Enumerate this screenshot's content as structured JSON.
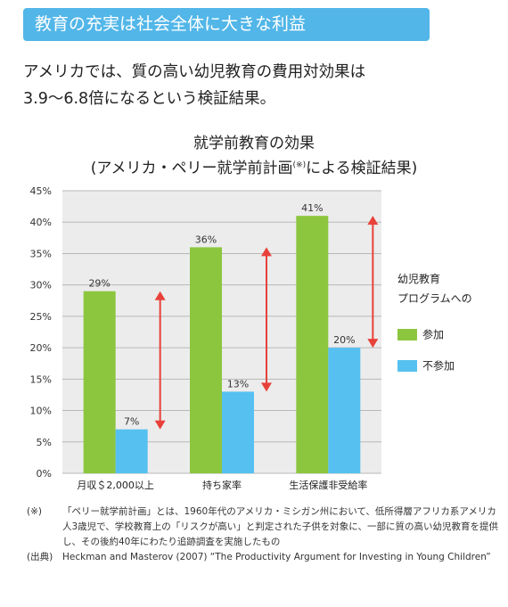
{
  "banner": {
    "title": "教育の充実は社会全体に大きな利益"
  },
  "headline": {
    "line1": "アメリカでは、質の高い幼児教育の費用対効果は",
    "line2": "3.9〜6.8倍になるという検証結果。"
  },
  "chart_titles": {
    "title": "就学前教育の効果",
    "subtitle_pre": "(アメリカ・ペリー就学前計画",
    "subtitle_sup": "(※)",
    "subtitle_post": "による検証結果)"
  },
  "legend": {
    "title_line1": "幼児教育",
    "title_line2": "プログラムへの"
  },
  "colors": {
    "participate": "#8cc63f",
    "non_participate": "#56c1f0",
    "arrow": "#e8413a",
    "grid": "#b8b8b8",
    "plot_bg": "#ececec"
  },
  "chart_data": {
    "type": "bar",
    "categories": [
      "月収＄2,000以上",
      "持ち家率",
      "生活保護非受給率"
    ],
    "series": [
      {
        "name": "参加",
        "values": [
          29,
          36,
          41
        ],
        "labels": [
          "29%",
          "36%",
          "41%"
        ]
      },
      {
        "name": "不参加",
        "values": [
          7,
          13,
          20
        ],
        "labels": [
          "7%",
          "13%",
          "20%"
        ]
      }
    ],
    "ylim": [
      0,
      45
    ],
    "yticks": [
      "0%",
      "5%",
      "10%",
      "15%",
      "20%",
      "25%",
      "30%",
      "35%",
      "40%",
      "45%"
    ],
    "ytick_values": [
      0,
      5,
      10,
      15,
      20,
      25,
      30,
      35,
      40,
      45
    ],
    "grid": true,
    "legend_position": "right"
  },
  "notes": [
    {
      "mark": "(※)",
      "text": "「ペリー就学前計画」とは、1960年代のアメリカ・ミシガン州において、低所得層アフリカ系アメリカ人3歳児で、学校教育上の「リスクが高い」と判定された子供を対象に、一部に質の高い幼児教育を提供し、その後約40年にわたり追跡調査を実施したもの"
    },
    {
      "mark": "(出典)",
      "text": "Heckman and Masterov (2007) “The Productivity Argument for Investing in Young Children”"
    }
  ]
}
